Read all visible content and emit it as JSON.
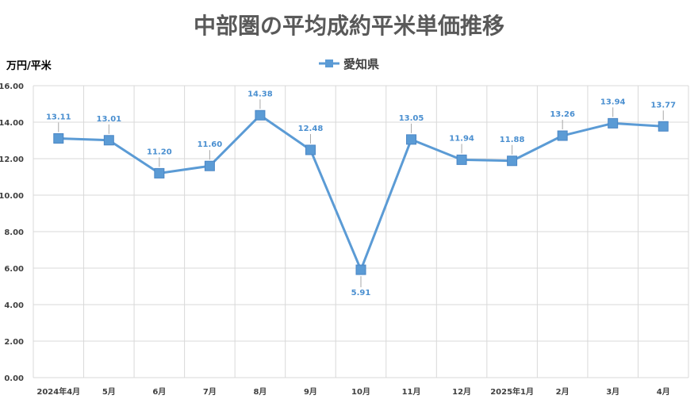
{
  "chart_data": {
    "type": "line",
    "title": "中部圏の平均成約平米単価推移",
    "ylabel": "万円/平米",
    "xlabel": "",
    "ylim": [
      0,
      16
    ],
    "ytick_step": 2,
    "ytick_labels": [
      "0.00",
      "2.00",
      "4.00",
      "6.00",
      "8.00",
      "10.00",
      "12.00",
      "14.00",
      "16.00"
    ],
    "categories": [
      "2024年4月",
      "5月",
      "6月",
      "7月",
      "8月",
      "9月",
      "10月",
      "11月",
      "12月",
      "2025年1月",
      "2月",
      "3月",
      "4月"
    ],
    "series": [
      {
        "name": "愛知県",
        "color": "#5b9bd5",
        "values": [
          13.11,
          13.01,
          11.2,
          11.6,
          14.38,
          12.48,
          5.91,
          13.05,
          11.94,
          11.88,
          13.26,
          13.94,
          13.77
        ],
        "labels": [
          "13.11",
          "13.01",
          "11.20",
          "11.60",
          "14.38",
          "12.48",
          "5.91",
          "13.05",
          "11.94",
          "11.88",
          "13.26",
          "13.94",
          "13.77"
        ]
      }
    ],
    "grid": true,
    "legend_position": "top"
  },
  "colors": {
    "line": "#5b9bd5",
    "marker": "#5b9bd5",
    "label": "#4a8fd0",
    "grid": "#d9d9d9",
    "title": "#595959"
  }
}
